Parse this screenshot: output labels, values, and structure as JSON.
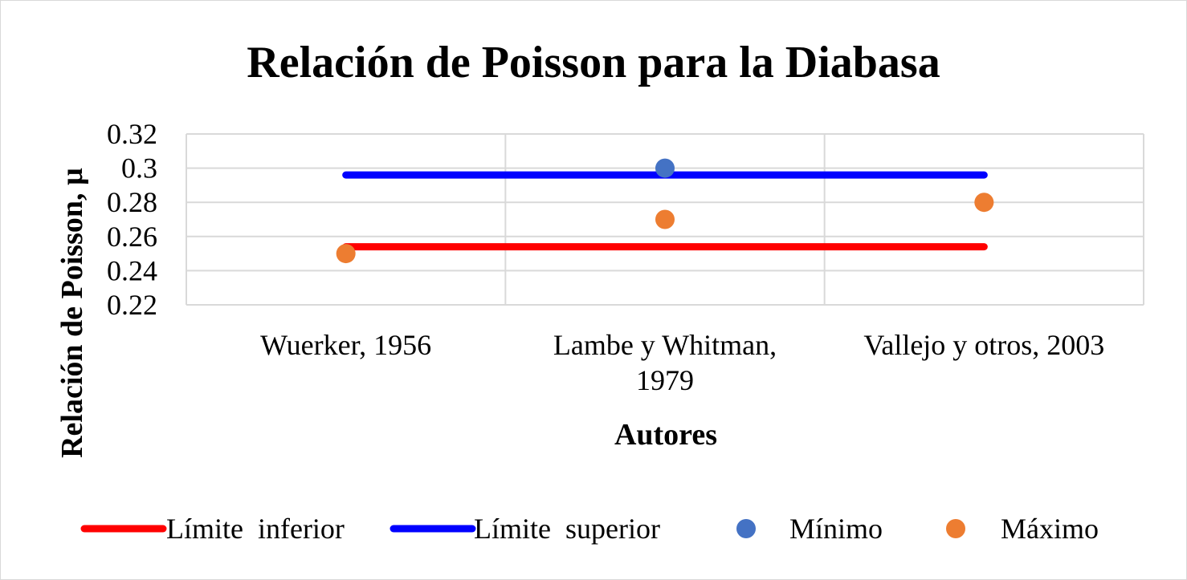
{
  "chart_data": {
    "type": "line",
    "title": "Relación de Poisson para la Diabasa",
    "xlabel": "Autores",
    "ylabel": "Relación de Poisson, µ",
    "categories": [
      [
        "Wuerker, 1956"
      ],
      [
        "Lambe y Whitman,",
        "1979"
      ],
      [
        "Vallejo y otros, 2003"
      ]
    ],
    "ylim": [
      0.22,
      0.32
    ],
    "yticks": [
      "0.22",
      "0.24",
      "0.26",
      "0.28",
      "0.3",
      "0.32"
    ],
    "grid": true,
    "legend_position": "bottom",
    "series": [
      {
        "name": "Límite  inferior",
        "kind": "line",
        "values": [
          0.254,
          0.254,
          0.254
        ],
        "color": "#ff0000"
      },
      {
        "name": "Límite  superior",
        "kind": "line",
        "values": [
          0.296,
          0.296,
          0.296
        ],
        "color": "#0000ff"
      },
      {
        "name": "Mínimo",
        "kind": "marker",
        "values": [
          null,
          0.3,
          null
        ],
        "color": "#4472c4"
      },
      {
        "name": "Máximo",
        "kind": "marker",
        "values": [
          0.25,
          0.27,
          0.28
        ],
        "color": "#ed7d31"
      }
    ]
  }
}
